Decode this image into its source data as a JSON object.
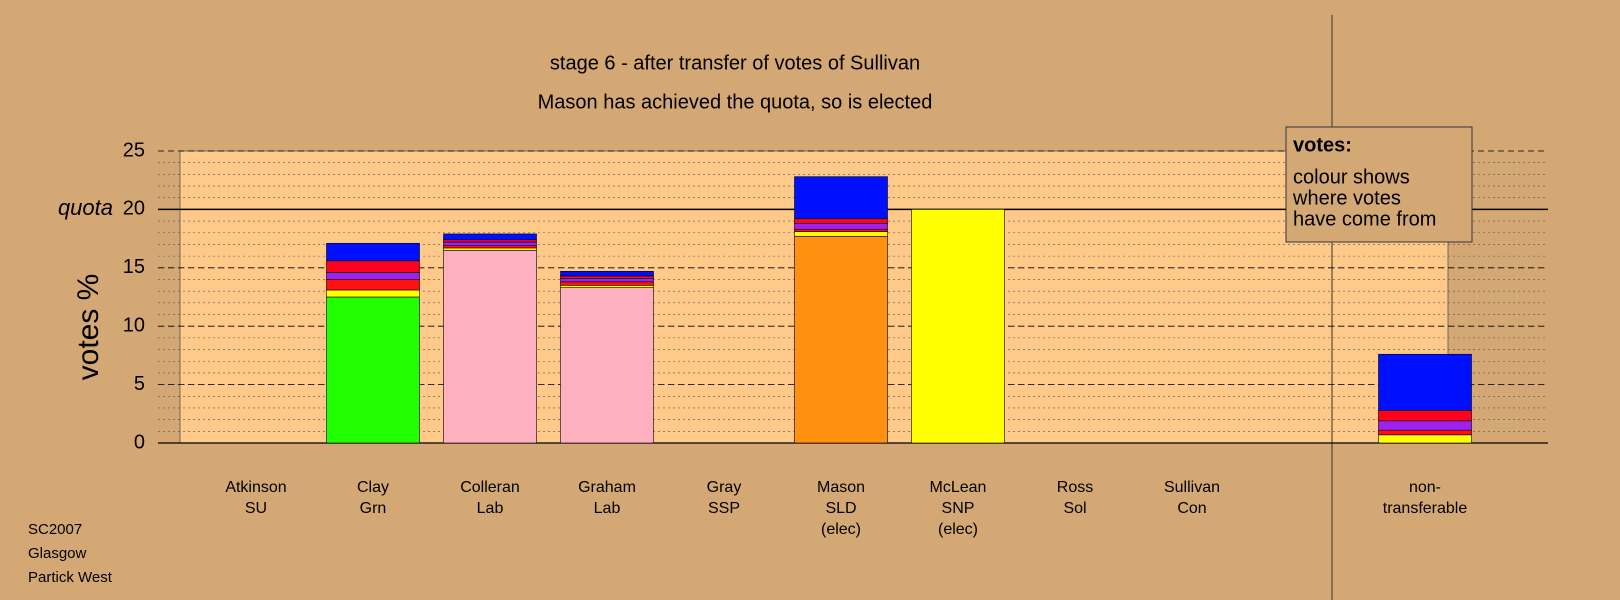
{
  "chart_data": {
    "type": "stacked_bar",
    "title": "stage 6 - after transfer of votes of Sullivan",
    "subtitle": "Mason has achieved the quota, so is elected",
    "y_label": "votes %",
    "quota": {
      "value": 20,
      "label": "quota"
    },
    "legend": {
      "title": "votes:",
      "lines": [
        "colour shows",
        "where votes",
        "have come from"
      ]
    },
    "footer": [
      "SC2007",
      "Glasgow",
      "Partick West"
    ],
    "categories": [
      [
        "Atkinson",
        "SU"
      ],
      [
        "Clay",
        "Grn"
      ],
      [
        "Colleran",
        "Lab"
      ],
      [
        "Graham",
        "Lab"
      ],
      [
        "Gray",
        "SSP"
      ],
      [
        "Mason",
        "SLD",
        "(elec)"
      ],
      [
        "McLean",
        "SNP",
        "(elec)"
      ],
      [
        "Ross",
        "Sol"
      ],
      [
        "Sullivan",
        "Con"
      ],
      [
        "non-",
        "transferable"
      ]
    ],
    "series": [
      {
        "color": "#22ff00",
        "values": [
          0,
          12.5,
          0,
          0,
          0,
          0,
          0,
          0,
          0,
          0
        ]
      },
      {
        "color": "#ffb0c0",
        "values": [
          0,
          0,
          16.5,
          13.3,
          0,
          0,
          0,
          0,
          0,
          0
        ]
      },
      {
        "color": "#ff9010",
        "values": [
          0,
          0,
          0,
          0,
          0,
          17.7,
          0,
          0,
          0,
          0
        ]
      },
      {
        "color": "#ffff00",
        "values": [
          0,
          0.6,
          0.2,
          0.2,
          0,
          0.4,
          20,
          0,
          0,
          0.7
        ]
      },
      {
        "color": "#ff1010",
        "values": [
          0,
          0.9,
          0.2,
          0.3,
          0,
          0.2,
          0,
          0,
          0,
          0.4
        ]
      },
      {
        "color": "#a020f0",
        "values": [
          0,
          0.6,
          0.3,
          0.3,
          0,
          0.5,
          0,
          0,
          0,
          0.8
        ]
      },
      {
        "color": "#ff0020",
        "values": [
          0,
          1.0,
          0.2,
          0.2,
          0,
          0.4,
          0,
          0,
          0,
          0.9
        ]
      },
      {
        "color": "#0010ff",
        "values": [
          0,
          1.5,
          0.5,
          0.4,
          0,
          3.6,
          0,
          0,
          0,
          4.8
        ]
      }
    ],
    "ylim": [
      0,
      25
    ],
    "yticks": [
      0,
      5,
      10,
      15,
      20,
      25
    ],
    "minor_ystep": 1,
    "grid": true
  }
}
